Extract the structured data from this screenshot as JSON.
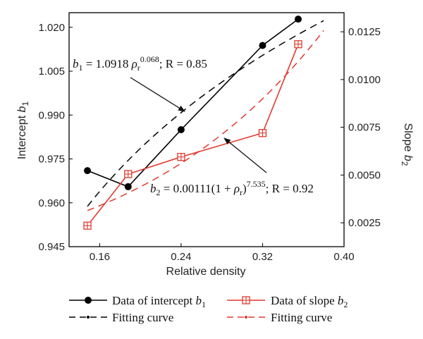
{
  "chart_data": {
    "type": "line",
    "xlabel": "Relative density",
    "ylabel_left": "Intercept b1",
    "ylabel_right": "Slope b2",
    "xlim": [
      0.13,
      0.4
    ],
    "ylim_left": [
      0.945,
      1.025
    ],
    "ylim_right": [
      0.00125,
      0.0135
    ],
    "x_ticks": [
      0.16,
      0.24,
      0.32,
      0.4
    ],
    "x_tick_labels": [
      "0.16",
      "0.24",
      "0.32",
      "0.40"
    ],
    "y_left_ticks": [
      0.945,
      0.96,
      0.975,
      0.99,
      1.005,
      1.02
    ],
    "y_left_tick_labels": [
      "0.945",
      "0.960",
      "0.975",
      "0.990",
      "1.005",
      "1.020"
    ],
    "y_right_ticks": [
      0.0025,
      0.005,
      0.0075,
      0.01,
      0.0125
    ],
    "y_right_tick_labels": [
      "0.0025",
      "0.0050",
      "0.0075",
      "0.0100",
      "0.0125"
    ],
    "series": [
      {
        "name": "Data of intercept b1",
        "axis": "left",
        "color": "#000000",
        "marker": "circle",
        "x": [
          0.148,
          0.188,
          0.24,
          0.32,
          0.355
        ],
        "y": [
          0.971,
          0.9655,
          0.985,
          1.0138,
          1.0228
        ]
      },
      {
        "name": "Fitting curve",
        "axis": "left",
        "color": "#000000",
        "style": "dashed",
        "fit": "power",
        "coef": 1.0918,
        "exponent": 0.068,
        "x_range": [
          0.148,
          0.38
        ]
      },
      {
        "name": "Data of slope b2",
        "axis": "right",
        "color": "#e03a2f",
        "marker": "square-plus",
        "x": [
          0.148,
          0.188,
          0.24,
          0.32,
          0.355
        ],
        "y": [
          0.00235,
          0.00505,
          0.00595,
          0.0072,
          0.01185
        ]
      },
      {
        "name": "Fitting curve",
        "axis": "right",
        "color": "#e03a2f",
        "style": "dashed",
        "fit": "power_plus_one",
        "coef": 0.00111,
        "exponent": 7.535,
        "x_range": [
          0.148,
          0.38
        ]
      }
    ],
    "annotations": {
      "b1_equation": {
        "var": "b",
        "sub": "1",
        "mid": " = 1.0918 ",
        "rho": "ρ",
        "rho_sub": "r",
        "sup": "0.068",
        "tail": "; R = 0.85"
      },
      "b2_equation": {
        "var": "b",
        "sub": "2",
        "mid": " = 0.00111(1 + ",
        "rho": "ρ",
        "rho_sub": "r",
        "close": ")",
        "sup": "7.535",
        "tail": "; R = 0.92"
      }
    },
    "legend": {
      "placement": "bottom",
      "items": [
        {
          "label": "Data of intercept ",
          "var": "b",
          "sub": "1"
        },
        {
          "label": "Data of slope ",
          "var": "b",
          "sub": "2"
        },
        {
          "label": "Fitting curve"
        },
        {
          "label": "Fitting curve"
        }
      ]
    }
  }
}
